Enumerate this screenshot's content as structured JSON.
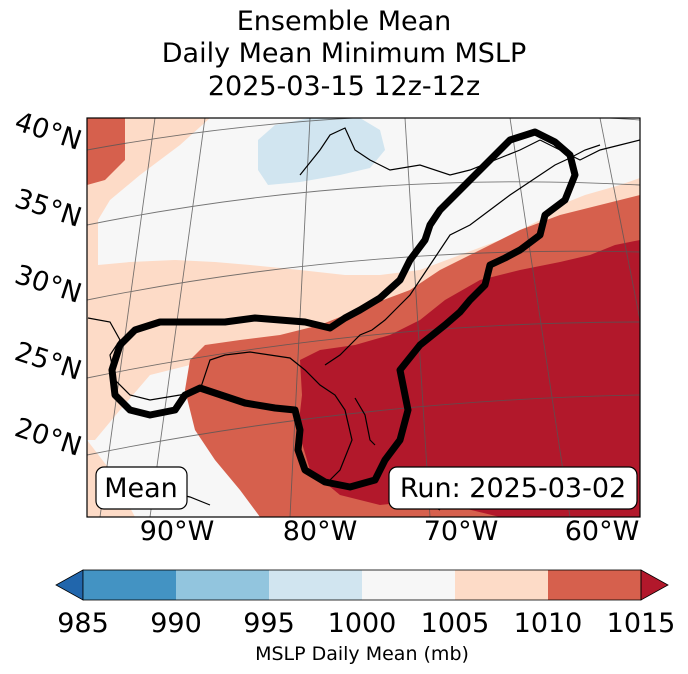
{
  "title": {
    "line1": "Ensemble Mean",
    "line2": "Daily Mean Minimum MSLP",
    "line3": "2025-03-15 12z-12z"
  },
  "map": {
    "lat_labels": [
      "40°N",
      "35°N",
      "30°N",
      "25°N",
      "20°N"
    ],
    "lon_labels": [
      "90°W",
      "80°W",
      "70°W",
      "60°W"
    ],
    "mean_box": "Mean",
    "run_box": "Run: 2025-03-02"
  },
  "colorbar": {
    "ticks": [
      "985",
      "990",
      "995",
      "1000",
      "1005",
      "1010",
      "1015"
    ],
    "label": "MSLP Daily Mean (mb)",
    "colors": [
      "#2166ac",
      "#4393c3",
      "#92c5de",
      "#d1e5f0",
      "#f7f7f7",
      "#fddbc7",
      "#d6604d",
      "#b2182b"
    ]
  }
}
